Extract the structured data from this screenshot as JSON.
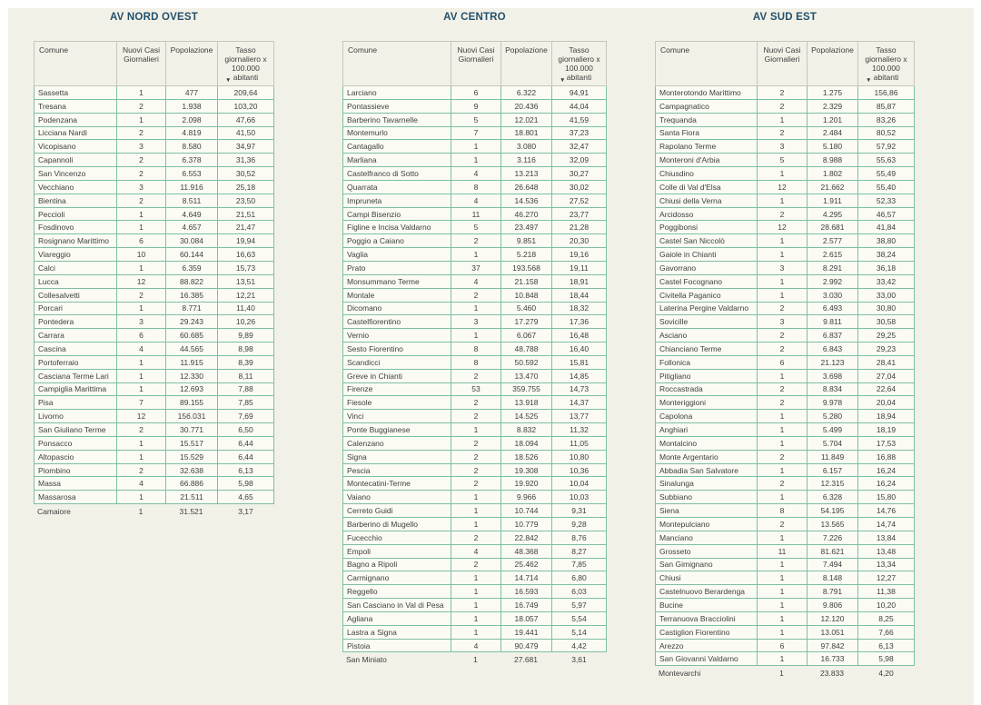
{
  "colors": {
    "page_background": "#f2f1e8",
    "cell_background": "#fbfbf4",
    "grid_border": "#7dbfa3",
    "header_border": "#c8c6b8",
    "title_text": "#24506a",
    "body_text": "#3e3e3e"
  },
  "icons": {
    "sort_desc": "▼"
  },
  "chart_data": [
    {
      "type": "table",
      "title": "AV NORD OVEST",
      "columns": [
        "Comune",
        "Nuovi Casi Giornalieri",
        "Popolazione",
        "Tasso giornaliero x 100.000 abitanti"
      ],
      "sorted_by": "Tasso giornaliero x 100.000 abitanti",
      "sort_direction": "desc",
      "rows": [
        [
          "Sassetta",
          "1",
          "477",
          "209,64"
        ],
        [
          "Tresana",
          "2",
          "1.938",
          "103,20"
        ],
        [
          "Podenzana",
          "1",
          "2.098",
          "47,66"
        ],
        [
          "Licciana Nardi",
          "2",
          "4.819",
          "41,50"
        ],
        [
          "Vicopisano",
          "3",
          "8.580",
          "34,97"
        ],
        [
          "Capannoli",
          "2",
          "6.378",
          "31,36"
        ],
        [
          "San Vincenzo",
          "2",
          "6.553",
          "30,52"
        ],
        [
          "Vecchiano",
          "3",
          "11.916",
          "25,18"
        ],
        [
          "Bientina",
          "2",
          "8.511",
          "23,50"
        ],
        [
          "Peccioli",
          "1",
          "4.649",
          "21,51"
        ],
        [
          "Fosdinovo",
          "1",
          "4.657",
          "21,47"
        ],
        [
          "Rosignano Marittimo",
          "6",
          "30.084",
          "19,94"
        ],
        [
          "Viareggio",
          "10",
          "60.144",
          "16,63"
        ],
        [
          "Calci",
          "1",
          "6.359",
          "15,73"
        ],
        [
          "Lucca",
          "12",
          "88.822",
          "13,51"
        ],
        [
          "Collesalvetti",
          "2",
          "16.385",
          "12,21"
        ],
        [
          "Porcari",
          "1",
          "8.771",
          "11,40"
        ],
        [
          "Pontedera",
          "3",
          "29.243",
          "10,26"
        ],
        [
          "Carrara",
          "6",
          "60.685",
          "9,89"
        ],
        [
          "Cascina",
          "4",
          "44.565",
          "8,98"
        ],
        [
          "Portoferraio",
          "1",
          "11.915",
          "8,39"
        ],
        [
          "Casciana Terme Lari",
          "1",
          "12.330",
          "8,11"
        ],
        [
          "Campiglia Marittima",
          "1",
          "12.693",
          "7,88"
        ],
        [
          "Pisa",
          "7",
          "89.155",
          "7,85"
        ],
        [
          "Livorno",
          "12",
          "156.031",
          "7,69"
        ],
        [
          "San Giuliano Terme",
          "2",
          "30.771",
          "6,50"
        ],
        [
          "Ponsacco",
          "1",
          "15.517",
          "6,44"
        ],
        [
          "Altopascio",
          "1",
          "15.529",
          "6,44"
        ],
        [
          "Piombino",
          "2",
          "32.638",
          "6,13"
        ],
        [
          "Massa",
          "4",
          "66.886",
          "5,98"
        ],
        [
          "Massarosa",
          "1",
          "21.511",
          "4,65"
        ],
        [
          "Camaiore",
          "1",
          "31.521",
          "3,17"
        ]
      ]
    },
    {
      "type": "table",
      "title": "AV CENTRO",
      "columns": [
        "Comune",
        "Nuovi Casi Giornalieri",
        "Popolazione",
        "Tasso giornaliero x 100.000 abitanti"
      ],
      "sorted_by": "Tasso giornaliero x 100.000 abitanti",
      "sort_direction": "desc",
      "rows": [
        [
          "Larciano",
          "6",
          "6.322",
          "94,91"
        ],
        [
          "Pontassieve",
          "9",
          "20.436",
          "44,04"
        ],
        [
          "Barberino Tavarnelle",
          "5",
          "12.021",
          "41,59"
        ],
        [
          "Montemurlo",
          "7",
          "18.801",
          "37,23"
        ],
        [
          "Cantagallo",
          "1",
          "3.080",
          "32,47"
        ],
        [
          "Marliana",
          "1",
          "3.116",
          "32,09"
        ],
        [
          "Castelfranco di Sotto",
          "4",
          "13.213",
          "30,27"
        ],
        [
          "Quarrata",
          "8",
          "26.648",
          "30,02"
        ],
        [
          "Impruneta",
          "4",
          "14.536",
          "27,52"
        ],
        [
          "Campi Bisenzio",
          "11",
          "46.270",
          "23,77"
        ],
        [
          "Figline e Incisa Valdarno",
          "5",
          "23.497",
          "21,28"
        ],
        [
          "Poggio a Caiano",
          "2",
          "9.851",
          "20,30"
        ],
        [
          "Vaglia",
          "1",
          "5.218",
          "19,16"
        ],
        [
          "Prato",
          "37",
          "193.568",
          "19,11"
        ],
        [
          "Monsummano Terme",
          "4",
          "21.158",
          "18,91"
        ],
        [
          "Montale",
          "2",
          "10.848",
          "18,44"
        ],
        [
          "Dicomano",
          "1",
          "5.460",
          "18,32"
        ],
        [
          "Castelfiorentino",
          "3",
          "17.279",
          "17,36"
        ],
        [
          "Vernio",
          "1",
          "6.067",
          "16,48"
        ],
        [
          "Sesto Fiorentino",
          "8",
          "48.788",
          "16,40"
        ],
        [
          "Scandicci",
          "8",
          "50.592",
          "15,81"
        ],
        [
          "Greve in Chianti",
          "2",
          "13.470",
          "14,85"
        ],
        [
          "Firenze",
          "53",
          "359.755",
          "14,73"
        ],
        [
          "Fiesole",
          "2",
          "13.918",
          "14,37"
        ],
        [
          "Vinci",
          "2",
          "14.525",
          "13,77"
        ],
        [
          "Ponte Buggianese",
          "1",
          "8.832",
          "11,32"
        ],
        [
          "Calenzano",
          "2",
          "18.094",
          "11,05"
        ],
        [
          "Signa",
          "2",
          "18.526",
          "10,80"
        ],
        [
          "Pescia",
          "2",
          "19.308",
          "10,36"
        ],
        [
          "Montecatini-Terme",
          "2",
          "19.920",
          "10,04"
        ],
        [
          "Vaiano",
          "1",
          "9.966",
          "10,03"
        ],
        [
          "Cerreto Guidi",
          "1",
          "10.744",
          "9,31"
        ],
        [
          "Barberino di Mugello",
          "1",
          "10.779",
          "9,28"
        ],
        [
          "Fucecchio",
          "2",
          "22.842",
          "8,76"
        ],
        [
          "Empoli",
          "4",
          "48.368",
          "8,27"
        ],
        [
          "Bagno a Ripoli",
          "2",
          "25.462",
          "7,85"
        ],
        [
          "Carmignano",
          "1",
          "14.714",
          "6,80"
        ],
        [
          "Reggello",
          "1",
          "16.593",
          "6,03"
        ],
        [
          "San Casciano in Val di Pesa",
          "1",
          "16.749",
          "5,97"
        ],
        [
          "Agliana",
          "1",
          "18.057",
          "5,54"
        ],
        [
          "Lastra a Signa",
          "1",
          "19.441",
          "5,14"
        ],
        [
          "Pistoia",
          "4",
          "90.479",
          "4,42"
        ],
        [
          "San Miniato",
          "1",
          "27.681",
          "3,61"
        ]
      ]
    },
    {
      "type": "table",
      "title": "AV SUD EST",
      "columns": [
        "Comune",
        "Nuovi Casi Giornalieri",
        "Popolazione",
        "Tasso giornaliero x 100.000 abitanti"
      ],
      "sorted_by": "Tasso giornaliero x 100.000 abitanti",
      "sort_direction": "desc",
      "rows": [
        [
          "Monterotondo Marittimo",
          "2",
          "1.275",
          "156,86"
        ],
        [
          "Campagnatico",
          "2",
          "2.329",
          "85,87"
        ],
        [
          "Trequanda",
          "1",
          "1.201",
          "83,26"
        ],
        [
          "Santa Fiora",
          "2",
          "2.484",
          "80,52"
        ],
        [
          "Rapolano Terme",
          "3",
          "5.180",
          "57,92"
        ],
        [
          "Monteroni d'Arbia",
          "5",
          "8.988",
          "55,63"
        ],
        [
          "Chiusdino",
          "1",
          "1.802",
          "55,49"
        ],
        [
          "Colle di Val d'Elsa",
          "12",
          "21.662",
          "55,40"
        ],
        [
          "Chiusi della Verna",
          "1",
          "1.911",
          "52,33"
        ],
        [
          "Arcidosso",
          "2",
          "4.295",
          "46,57"
        ],
        [
          "Poggibonsi",
          "12",
          "28.681",
          "41,84"
        ],
        [
          "Castel San Niccolò",
          "1",
          "2.577",
          "38,80"
        ],
        [
          "Gaiole in Chianti",
          "1",
          "2.615",
          "38,24"
        ],
        [
          "Gavorrano",
          "3",
          "8.291",
          "36,18"
        ],
        [
          "Castel Focognano",
          "1",
          "2.992",
          "33,42"
        ],
        [
          "Civitella Paganico",
          "1",
          "3.030",
          "33,00"
        ],
        [
          "Laterina Pergine Valdarno",
          "2",
          "6.493",
          "30,80"
        ],
        [
          "Sovicille",
          "3",
          "9.811",
          "30,58"
        ],
        [
          "Asciano",
          "2",
          "6.837",
          "29,25"
        ],
        [
          "Chianciano Terme",
          "2",
          "6.843",
          "29,23"
        ],
        [
          "Follonica",
          "6",
          "21.123",
          "28,41"
        ],
        [
          "Pitigliano",
          "1",
          "3.698",
          "27,04"
        ],
        [
          "Roccastrada",
          "2",
          "8.834",
          "22,64"
        ],
        [
          "Monteriggioni",
          "2",
          "9.978",
          "20,04"
        ],
        [
          "Capolona",
          "1",
          "5.280",
          "18,94"
        ],
        [
          "Anghiari",
          "1",
          "5.499",
          "18,19"
        ],
        [
          "Montalcino",
          "1",
          "5.704",
          "17,53"
        ],
        [
          "Monte Argentario",
          "2",
          "11.849",
          "16,88"
        ],
        [
          "Abbadia San Salvatore",
          "1",
          "6.157",
          "16,24"
        ],
        [
          "Sinalunga",
          "2",
          "12.315",
          "16,24"
        ],
        [
          "Subbiano",
          "1",
          "6.328",
          "15,80"
        ],
        [
          "Siena",
          "8",
          "54.195",
          "14,76"
        ],
        [
          "Montepulciano",
          "2",
          "13.565",
          "14,74"
        ],
        [
          "Manciano",
          "1",
          "7.226",
          "13,84"
        ],
        [
          "Grosseto",
          "11",
          "81.621",
          "13,48"
        ],
        [
          "San Gimignano",
          "1",
          "7.494",
          "13,34"
        ],
        [
          "Chiusi",
          "1",
          "8.148",
          "12,27"
        ],
        [
          "Castelnuovo Berardenga",
          "1",
          "8.791",
          "11,38"
        ],
        [
          "Bucine",
          "1",
          "9.806",
          "10,20"
        ],
        [
          "Terranuova Bracciolini",
          "1",
          "12.120",
          "8,25"
        ],
        [
          "Castiglion Fiorentino",
          "1",
          "13.051",
          "7,66"
        ],
        [
          "Arezzo",
          "6",
          "97.842",
          "6,13"
        ],
        [
          "San Giovanni Valdarno",
          "1",
          "16.733",
          "5,98"
        ],
        [
          "Montevarchi",
          "1",
          "23.833",
          "4,20"
        ]
      ]
    }
  ]
}
